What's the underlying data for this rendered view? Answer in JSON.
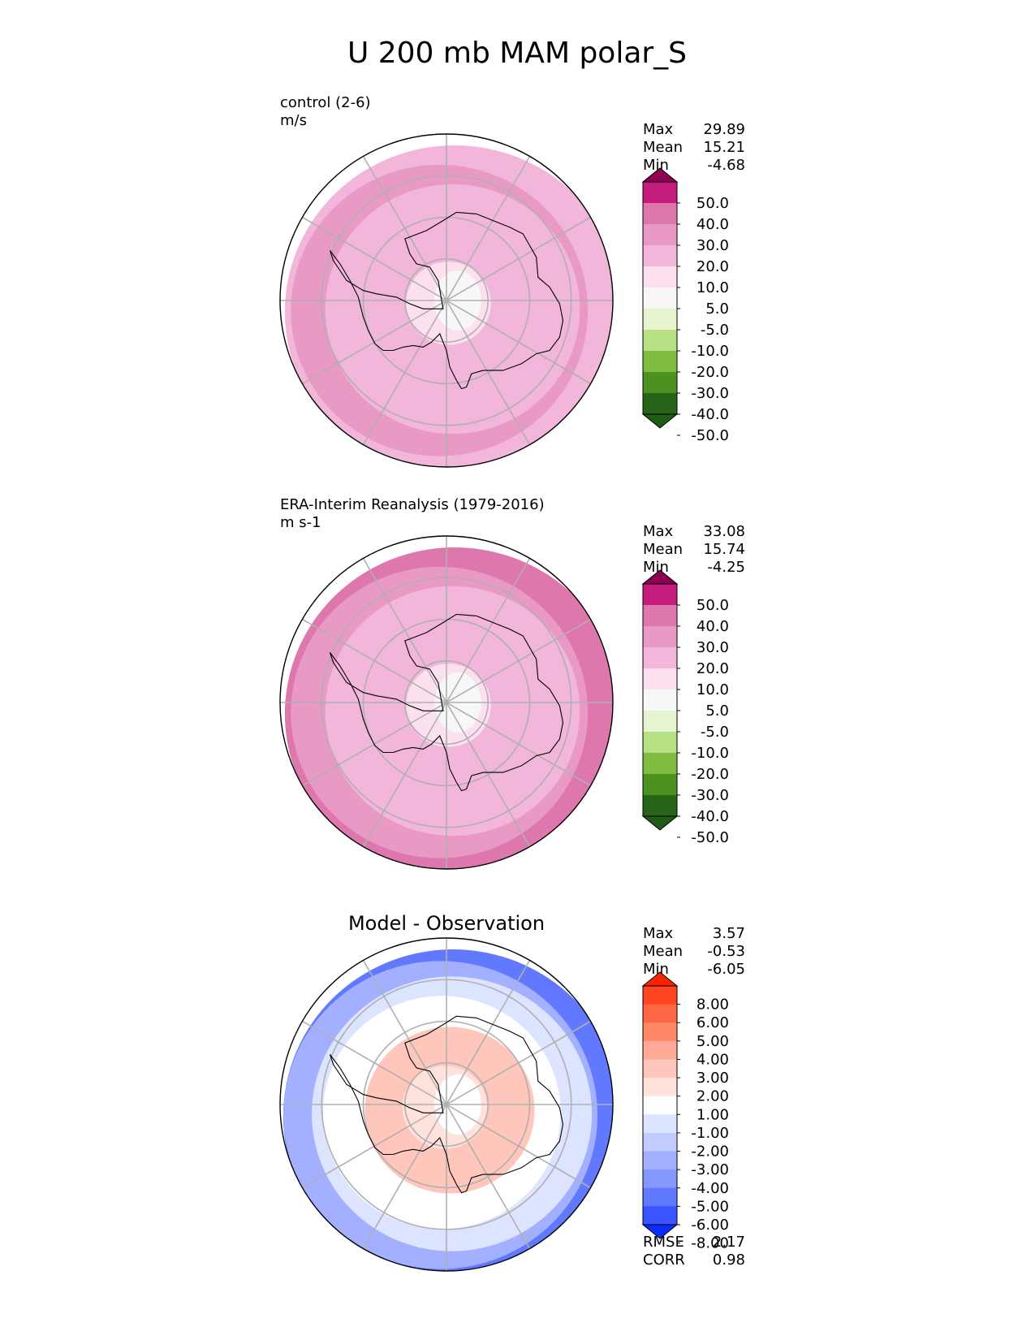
{
  "chart_data": {
    "type": "polar contour maps",
    "title": "U 200 mb MAM polar_S",
    "panels": [
      {
        "name": "test",
        "title_line1": "control (2-6)",
        "title_line2": "m/s",
        "center_title": "",
        "stats": [
          {
            "label": "Max",
            "value": "29.89"
          },
          {
            "label": "Mean",
            "value": "15.21"
          },
          {
            "label": "Min",
            "value": "-4.68"
          }
        ],
        "metrics": [],
        "colorbar": {
          "levels": [
            "50.0",
            "40.0",
            "30.0",
            "20.0",
            "10.0",
            "5.0",
            "-5.0",
            "-10.0",
            "-20.0",
            "-30.0",
            "-40.0",
            "-50.0"
          ],
          "colors": [
            "#8e0152",
            "#c51b7d",
            "#de77ae",
            "#e899c4",
            "#f1b6da",
            "#fde0ef",
            "#f7f7f7",
            "#e6f5d0",
            "#b8e186",
            "#7fbc41",
            "#4d9221",
            "#276419",
            "#1f5c14"
          ],
          "extend": "both"
        },
        "field_bands": [
          {
            "lat": -90,
            "value": 2
          },
          {
            "lat": -80,
            "value": 7
          },
          {
            "lat": -70,
            "value": 13
          },
          {
            "lat": -60,
            "value": 18
          },
          {
            "lat": -55,
            "value": 22
          },
          {
            "lat": -50,
            "value": 19
          }
        ]
      },
      {
        "name": "reference",
        "title_line1": "ERA-Interim Reanalysis (1979-2016)",
        "title_line2": "m s-1",
        "center_title": "",
        "stats": [
          {
            "label": "Max",
            "value": "33.08"
          },
          {
            "label": "Mean",
            "value": "15.74"
          },
          {
            "label": "Min",
            "value": "-4.25"
          }
        ],
        "metrics": [],
        "colorbar": {
          "levels": [
            "50.0",
            "40.0",
            "30.0",
            "20.0",
            "10.0",
            "5.0",
            "-5.0",
            "-10.0",
            "-20.0",
            "-30.0",
            "-40.0",
            "-50.0"
          ],
          "colors": [
            "#8e0152",
            "#c51b7d",
            "#de77ae",
            "#e899c4",
            "#f1b6da",
            "#fde0ef",
            "#f7f7f7",
            "#e6f5d0",
            "#b8e186",
            "#7fbc41",
            "#4d9221",
            "#276419",
            "#1f5c14"
          ],
          "extend": "both"
        },
        "field_bands": [
          {
            "lat": -90,
            "value": 2
          },
          {
            "lat": -80,
            "value": 7
          },
          {
            "lat": -70,
            "value": 14
          },
          {
            "lat": -60,
            "value": 19
          },
          {
            "lat": -55,
            "value": 24
          },
          {
            "lat": -50,
            "value": 31
          }
        ]
      },
      {
        "name": "difference",
        "title_line1": "",
        "title_line2": "",
        "center_title": "Model - Observation",
        "stats": [
          {
            "label": "Max",
            "value": "3.57"
          },
          {
            "label": "Mean",
            "value": "-0.53"
          },
          {
            "label": "Min",
            "value": "-6.05"
          }
        ],
        "metrics": [
          {
            "label": "RMSE",
            "value": "2.17"
          },
          {
            "label": "CORR",
            "value": "0.98"
          }
        ],
        "colorbar": {
          "levels": [
            "8.00",
            "6.00",
            "5.00",
            "4.00",
            "3.00",
            "2.00",
            "1.00",
            "-1.00",
            "-2.00",
            "-3.00",
            "-4.00",
            "-5.00",
            "-6.00",
            "-8.00"
          ],
          "colors": [
            "#ff2200",
            "#ff4422",
            "#ff6644",
            "#ff8866",
            "#ffaa99",
            "#ffc6bb",
            "#ffe2dc",
            "#ffffff",
            "#dde4ff",
            "#c2ccff",
            "#a3b0ff",
            "#8597ff",
            "#6179ff",
            "#3a55ff",
            "#0a2dff"
          ],
          "extend": "both"
        },
        "field_bands": [
          {
            "lat": -90,
            "value": 0.5
          },
          {
            "lat": -80,
            "value": 1.5
          },
          {
            "lat": -70,
            "value": 2.5
          },
          {
            "lat": -62,
            "value": 0
          },
          {
            "lat": -57,
            "value": -1.5
          },
          {
            "lat": -53,
            "value": -3.5
          },
          {
            "lat": -50,
            "value": -5.5
          }
        ]
      }
    ]
  }
}
